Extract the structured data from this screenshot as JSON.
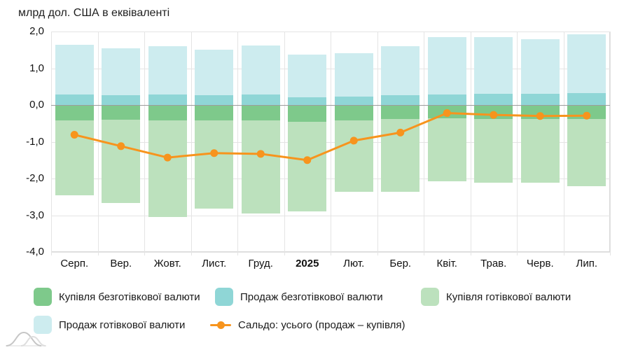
{
  "title": "млрд дол. США в еквіваленті",
  "chart_data": {
    "type": "bar",
    "subtype": "stacked-bars-with-line",
    "categories": [
      "Серп.",
      "Вер.",
      "Жовт.",
      "Лист.",
      "Груд.",
      "2025",
      "Лют.",
      "Бер.",
      "Квіт.",
      "Трав.",
      "Черв.",
      "Лип."
    ],
    "bold_category": "2025",
    "series": [
      {
        "key": "buy-noncash",
        "name": "Купівля безготівкової валюти",
        "type": "bar",
        "color": "#7ec98b",
        "values": [
          -0.41,
          -0.4,
          -0.42,
          -0.42,
          -0.42,
          -0.45,
          -0.42,
          -0.39,
          -0.37,
          -0.38,
          -0.38,
          -0.38
        ]
      },
      {
        "key": "sell-noncash",
        "name": "Продаж безготівкової валюти",
        "type": "bar",
        "color": "#8fd6d6",
        "values": [
          0.28,
          0.27,
          0.28,
          0.27,
          0.29,
          0.21,
          0.22,
          0.26,
          0.29,
          0.3,
          0.3,
          0.33
        ]
      },
      {
        "key": "buy-cash",
        "name": "Купівля готівкової валюти",
        "type": "bar",
        "color": "#bce1bd",
        "values": [
          -2.04,
          -2.27,
          -2.63,
          -2.4,
          -2.53,
          -2.44,
          -1.95,
          -1.97,
          -1.71,
          -1.74,
          -1.73,
          -1.83
        ]
      },
      {
        "key": "sell-cash",
        "name": "Продаж готівкової валюти",
        "type": "bar",
        "color": "#cdecef",
        "values": [
          1.35,
          1.28,
          1.32,
          1.23,
          1.33,
          1.17,
          1.19,
          1.34,
          1.56,
          1.54,
          1.5,
          1.6
        ]
      },
      {
        "key": "saldo",
        "name": "Сальдо: усього (продаж – купівля)",
        "type": "line",
        "color": "#f7941d",
        "values": [
          -0.81,
          -1.12,
          -1.43,
          -1.31,
          -1.33,
          -1.5,
          -0.97,
          -0.75,
          -0.22,
          -0.27,
          -0.3,
          -0.29
        ]
      }
    ],
    "stack_positive_order": [
      1,
      3
    ],
    "stack_negative_order": [
      0,
      2
    ],
    "ylim": [
      -4.0,
      2.0
    ],
    "ytick_labels": [
      "2,0",
      "1,0",
      "0,0",
      "-1,0",
      "-2,0",
      "-3,0",
      "-4,0"
    ],
    "grid": true,
    "legend_position": "bottom",
    "grid_color": "#e4e4e4",
    "zero_line_color": "#9c9c9c"
  }
}
